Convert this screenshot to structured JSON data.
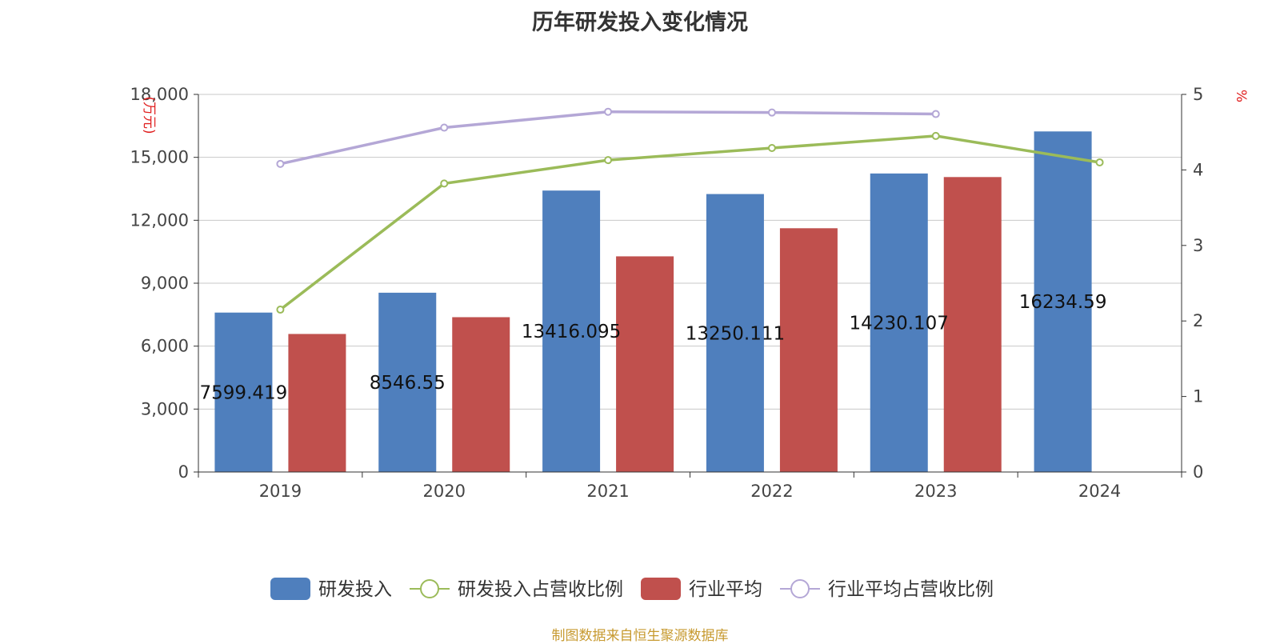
{
  "chart_data": {
    "type": "bar",
    "title": "历年研发投入变化情况",
    "categories": [
      "2019",
      "2020",
      "2021",
      "2022",
      "2023",
      "2024"
    ],
    "left_axis": {
      "label": "(万元)",
      "min": 0,
      "max": 18000,
      "ticks": [
        0,
        3000,
        6000,
        9000,
        12000,
        15000,
        18000
      ],
      "tick_labels": [
        "0",
        "3,000",
        "6,000",
        "9,000",
        "12,000",
        "15,000",
        "18,000"
      ]
    },
    "right_axis": {
      "label": "%",
      "min": 0,
      "max": 5,
      "ticks": [
        0,
        1,
        2,
        3,
        4,
        5
      ],
      "tick_labels": [
        "0",
        "1",
        "2",
        "3",
        "4",
        "5"
      ]
    },
    "series": [
      {
        "name": "研发投入",
        "kind": "bar",
        "axis": "left",
        "color": "#4f7fbd",
        "values": [
          7599.419,
          8546.55,
          13416.095,
          13250.111,
          14230.107,
          16234.59
        ],
        "labels": [
          "7599.419",
          "8546.55",
          "13416.095",
          "13250.111",
          "14230.107",
          "16234.59"
        ]
      },
      {
        "name": "研发投入占营收比例",
        "kind": "line",
        "axis": "right",
        "color": "#9bbb59",
        "values": [
          2.15,
          3.82,
          4.13,
          4.29,
          4.45,
          4.1
        ]
      },
      {
        "name": "行业平均",
        "kind": "bar",
        "axis": "left",
        "color": "#c0504d",
        "values": [
          6580,
          7380,
          10280,
          11620,
          14060,
          null
        ]
      },
      {
        "name": "行业平均占营收比例",
        "kind": "line",
        "axis": "right",
        "color": "#b4a7d6",
        "values": [
          4.08,
          4.56,
          4.77,
          4.76,
          4.74,
          null
        ]
      }
    ],
    "legend_position": "bottom-center",
    "grid": true
  },
  "footer": {
    "source": "制图数据来自恒生聚源数据库",
    "source_color": "#c79a30"
  }
}
